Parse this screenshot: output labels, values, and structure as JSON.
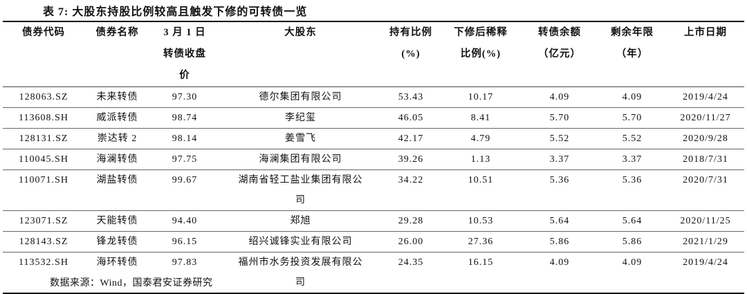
{
  "title": "表 7: 大股东持股比例较高且触发下修的可转债一览",
  "table": {
    "headers": [
      "债券代码",
      "债券名称",
      "3 月 1 日转债收盘价",
      "大股东",
      "持有比例(%)",
      "下修后稀释比例(%)",
      "转债余额（亿元）",
      "剩余年限（年）",
      "上市日期"
    ],
    "rows": [
      [
        "128063.SZ",
        "未来转债",
        "97.30",
        "德尔集团有限公司",
        "53.43",
        "10.17",
        "4.09",
        "4.09",
        "2019/4/24"
      ],
      [
        "113608.SH",
        "威派转债",
        "98.74",
        "李纪玺",
        "46.05",
        "8.41",
        "5.70",
        "5.70",
        "2020/11/27"
      ],
      [
        "128131.SZ",
        "崇达转 2",
        "98.14",
        "姜雪飞",
        "42.17",
        "4.79",
        "5.52",
        "5.52",
        "2020/9/28"
      ],
      [
        "110045.SH",
        "海澜转债",
        "97.75",
        "海澜集团有限公司",
        "39.26",
        "1.13",
        "3.37",
        "3.37",
        "2018/7/31"
      ],
      [
        "110071.SH",
        "湖盐转债",
        "99.67",
        "湖南省轻工盐业集团有限公司",
        "34.22",
        "10.51",
        "5.36",
        "5.36",
        "2020/7/31"
      ],
      [
        "123071.SZ",
        "天能转债",
        "94.40",
        "郑旭",
        "29.28",
        "10.53",
        "5.64",
        "5.64",
        "2020/11/25"
      ],
      [
        "128143.SZ",
        "锋龙转债",
        "96.15",
        "绍兴诚锋实业有限公司",
        "26.00",
        "27.36",
        "5.86",
        "5.86",
        "2021/1/29"
      ],
      [
        "113532.SH",
        "海环转债",
        "97.83",
        "福州市水务投资发展有限公司",
        "24.35",
        "16.15",
        "4.09",
        "4.09",
        "2019/4/24"
      ]
    ]
  },
  "source": "数据来源：Wind，国泰君安证券研究"
}
